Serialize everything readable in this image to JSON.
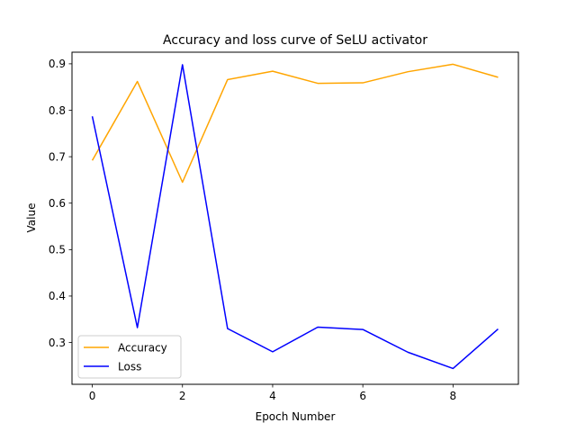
{
  "chart_data": {
    "type": "line",
    "title": "Accuracy and loss curve of SeLU activator",
    "xlabel": "Epoch Number",
    "ylabel": "Value",
    "x": [
      0,
      1,
      2,
      3,
      4,
      5,
      6,
      7,
      8,
      9
    ],
    "xlim": [
      -0.45,
      9.45
    ],
    "ylim": [
      0.21,
      0.925
    ],
    "xticks": [
      0,
      2,
      4,
      6,
      8
    ],
    "xtick_labels": [
      "0",
      "2",
      "4",
      "6",
      "8"
    ],
    "yticks": [
      0.3,
      0.4,
      0.5,
      0.6,
      0.7,
      0.8,
      0.9
    ],
    "ytick_labels": [
      "0.3",
      "0.4",
      "0.5",
      "0.6",
      "0.7",
      "0.8",
      "0.9"
    ],
    "grid": false,
    "legend_position": "lower-left",
    "series": [
      {
        "name": "Accuracy",
        "color": "#ffa500",
        "values": [
          0.692,
          0.862,
          0.645,
          0.866,
          0.884,
          0.858,
          0.859,
          0.883,
          0.899,
          0.871
        ]
      },
      {
        "name": "Loss",
        "color": "#0000ff",
        "values": [
          0.787,
          0.332,
          0.898,
          0.33,
          0.28,
          0.333,
          0.328,
          0.279,
          0.244,
          0.329
        ]
      }
    ]
  }
}
